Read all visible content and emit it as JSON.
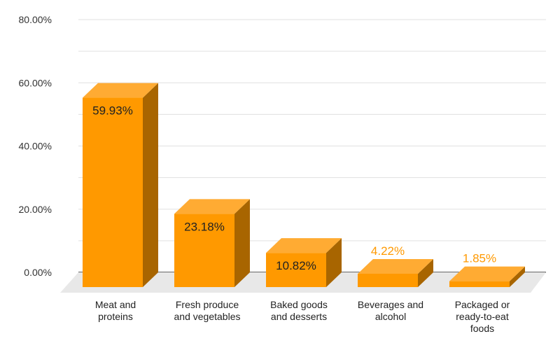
{
  "chart_data": {
    "type": "bar",
    "title": "",
    "xlabel": "",
    "ylabel": "",
    "ylim": [
      0,
      80
    ],
    "y_ticks": [
      "0.00%",
      "20.00%",
      "40.00%",
      "60.00%",
      "80.00%"
    ],
    "y_tick_values": [
      0,
      20,
      40,
      60,
      80
    ],
    "minor_grid_step": 10,
    "grid": true,
    "style": "3d",
    "categories": [
      [
        "Meat and",
        "proteins"
      ],
      [
        "Fresh produce",
        "and vegetables"
      ],
      [
        "Baked goods",
        "and desserts"
      ],
      [
        "Beverages and",
        "alcohol"
      ],
      [
        "Packaged or",
        "ready-to-eat",
        "foods"
      ]
    ],
    "values": [
      59.93,
      23.18,
      10.82,
      4.22,
      1.85
    ],
    "data_labels": [
      "59.93%",
      "23.18%",
      "10.82%",
      "4.22%",
      "1.85%"
    ],
    "colors": {
      "front": "#ff9900",
      "top": "#ffab33",
      "side": "#a86500",
      "label_outside": "#ff9900",
      "grid": "#e0e0e0",
      "floor": "#e8e8e8",
      "axis": "#333333"
    }
  }
}
